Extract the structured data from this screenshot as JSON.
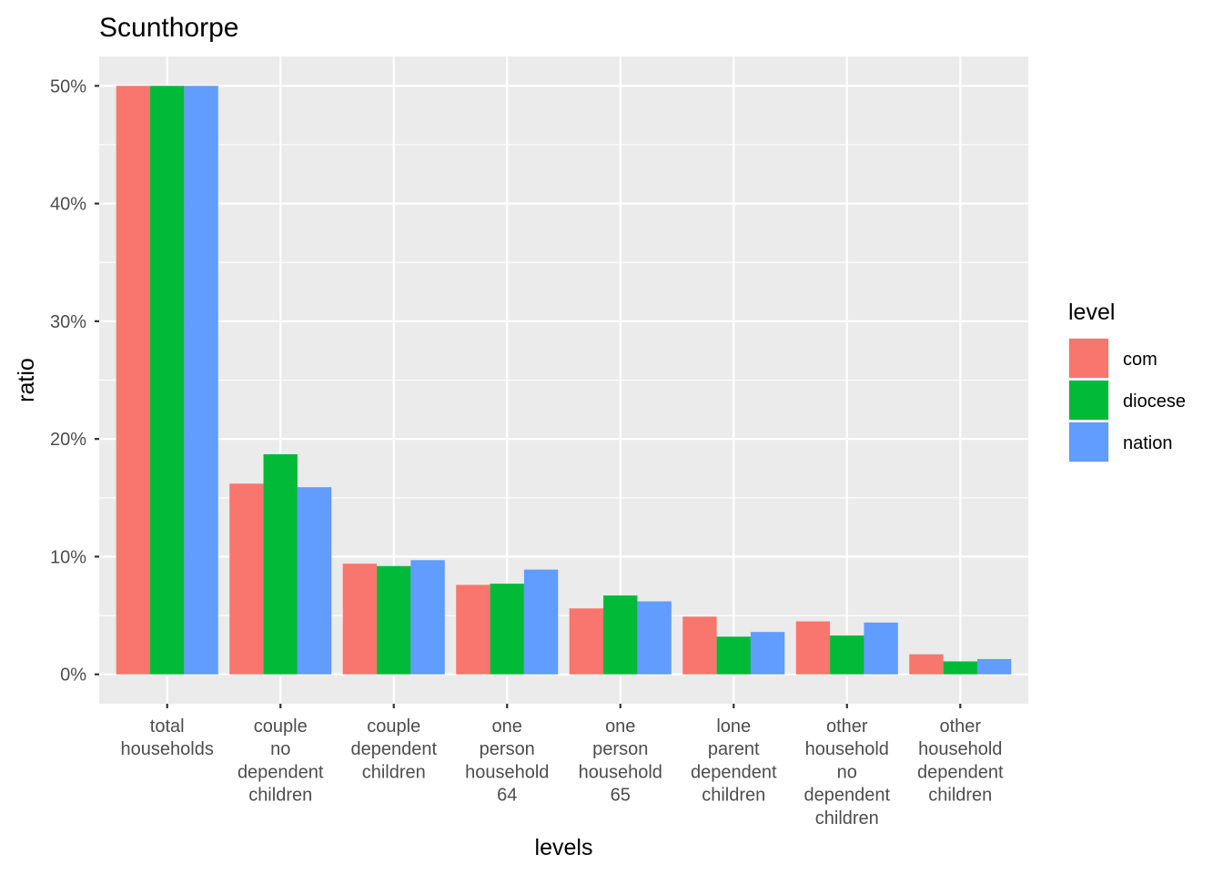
{
  "chart_data": {
    "type": "bar",
    "title": "Scunthorpe",
    "xlabel": "levels",
    "ylabel": "ratio",
    "categories": [
      [
        "total",
        "households"
      ],
      [
        "couple",
        "no",
        "dependent",
        "children"
      ],
      [
        "couple",
        "dependent",
        "children"
      ],
      [
        "one",
        "person",
        "household",
        "64"
      ],
      [
        "one",
        "person",
        "household",
        "65"
      ],
      [
        "lone",
        "parent",
        "dependent",
        "children"
      ],
      [
        "other",
        "household",
        "no",
        "dependent",
        "children"
      ],
      [
        "other",
        "household",
        "dependent",
        "children"
      ]
    ],
    "series": [
      {
        "name": "com",
        "color": "#F8766D",
        "values": [
          50.0,
          16.2,
          9.4,
          7.6,
          5.6,
          4.9,
          4.5,
          1.7
        ]
      },
      {
        "name": "diocese",
        "color": "#00BA38",
        "values": [
          50.0,
          18.7,
          9.2,
          7.7,
          6.7,
          3.2,
          3.3,
          1.1
        ]
      },
      {
        "name": "nation",
        "color": "#619CFF",
        "values": [
          50.0,
          15.9,
          9.7,
          8.9,
          6.2,
          3.6,
          4.4,
          1.3
        ]
      }
    ],
    "y_ticks": [
      "0%",
      "10%",
      "20%",
      "30%",
      "40%",
      "50%"
    ],
    "y_tick_values": [
      0,
      10,
      20,
      30,
      40,
      50
    ],
    "ylim": [
      -2.5,
      52.5
    ],
    "legend": {
      "title": "level",
      "position": "right"
    },
    "grid": true,
    "panel_color": "#EBEBEB",
    "grid_color": "#FFFFFF"
  }
}
